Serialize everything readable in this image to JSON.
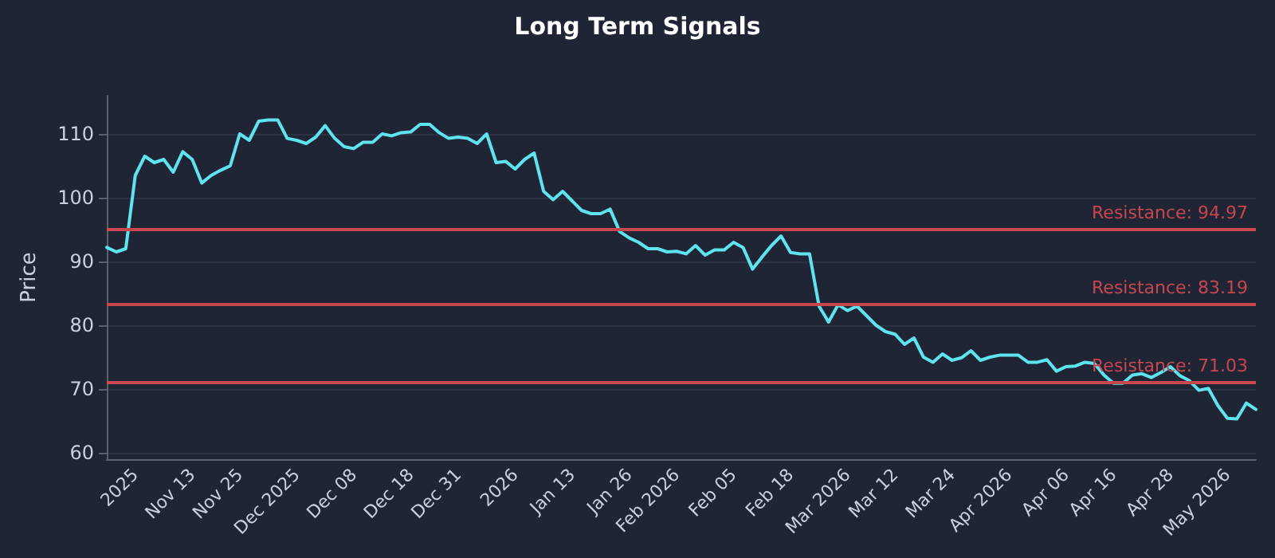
{
  "chart_data": {
    "type": "line",
    "title": "Long Term Signals",
    "ylabel": "Price",
    "categories": [
      null,
      null,
      null,
      "2025",
      null,
      null,
      null,
      null,
      null,
      "Nov 13",
      null,
      null,
      null,
      null,
      "Nov 25",
      null,
      null,
      null,
      null,
      null,
      "Dec 2025",
      null,
      null,
      null,
      null,
      null,
      "Dec 08",
      null,
      null,
      null,
      null,
      null,
      "Dec 18",
      null,
      null,
      null,
      null,
      "Dec 31",
      null,
      null,
      null,
      null,
      null,
      "2026",
      null,
      null,
      null,
      null,
      null,
      "Jan 13",
      null,
      null,
      null,
      null,
      null,
      "Jan 26",
      null,
      null,
      null,
      null,
      "Feb 2026",
      null,
      null,
      null,
      null,
      null,
      "Feb 05",
      null,
      null,
      null,
      null,
      null,
      "Feb 18",
      null,
      null,
      null,
      null,
      null,
      "Mar 2026",
      null,
      null,
      null,
      null,
      "Mar 12",
      null,
      null,
      null,
      null,
      null,
      "Mar 24",
      null,
      null,
      null,
      null,
      null,
      "Apr 2026",
      null,
      null,
      null,
      null,
      null,
      "Apr 06",
      null,
      null,
      null,
      null,
      "Apr 16",
      null,
      null,
      null,
      null,
      null,
      "Apr 28",
      null,
      null,
      null,
      null,
      null,
      "May 2026",
      null,
      null,
      null
    ],
    "series": [
      {
        "color": "#5ee3ef",
        "values": [
          92.2,
          91.5,
          92,
          103.5,
          106.5,
          105.5,
          106,
          104,
          107.2,
          106,
          102.3,
          103.5,
          104.3,
          105,
          110,
          109,
          112,
          112.2,
          112.2,
          109.3,
          109,
          108.5,
          109.5,
          111.3,
          109.3,
          108,
          107.7,
          108.7,
          108.7,
          110,
          109.7,
          110.2,
          110.3,
          111.5,
          111.5,
          110.2,
          109.3,
          109.5,
          109.3,
          108.5,
          110,
          105.5,
          105.7,
          104.5,
          106,
          107,
          101,
          99.7,
          101,
          99.5,
          98,
          97.5,
          97.5,
          98.2,
          94.7,
          93.7,
          93,
          92,
          92,
          91.5,
          91.6,
          91.2,
          92.5,
          91,
          91.8,
          91.8,
          93,
          92.2,
          88.8,
          90.7,
          92.5,
          94,
          91.4,
          91.2,
          91.2,
          83,
          80.5,
          83.2,
          82.3,
          83,
          81.5,
          80,
          79,
          78.6,
          77,
          78,
          75,
          74.2,
          75.5,
          74.5,
          74.9,
          76,
          74.5,
          75,
          75.3,
          75.3,
          75.3,
          74.2,
          74.2,
          74.6,
          72.8,
          73.5,
          73.6,
          74.2,
          74,
          72.2,
          70.9,
          70.9,
          72.2,
          72.4,
          71.8,
          72.6,
          73.5,
          72.1,
          71.3,
          69.8,
          70.1,
          67.4,
          65.4,
          65.3,
          67.8,
          66.8
        ]
      }
    ],
    "ylim": [
      59,
      116
    ],
    "yticks": [
      60,
      70,
      80,
      90,
      100,
      110
    ],
    "grid": "y",
    "marker": "none",
    "line_style": "solid",
    "ref_lines": [
      {
        "axis": "y",
        "value": 94.97,
        "label": "Resistance: 94.97",
        "color": "#c8474c"
      },
      {
        "axis": "y",
        "value": 83.19,
        "label": "Resistance: 83.19",
        "color": "#c8474c"
      },
      {
        "axis": "y",
        "value": 71.03,
        "label": "Resistance: 71.03",
        "color": "#c8474c"
      }
    ]
  }
}
